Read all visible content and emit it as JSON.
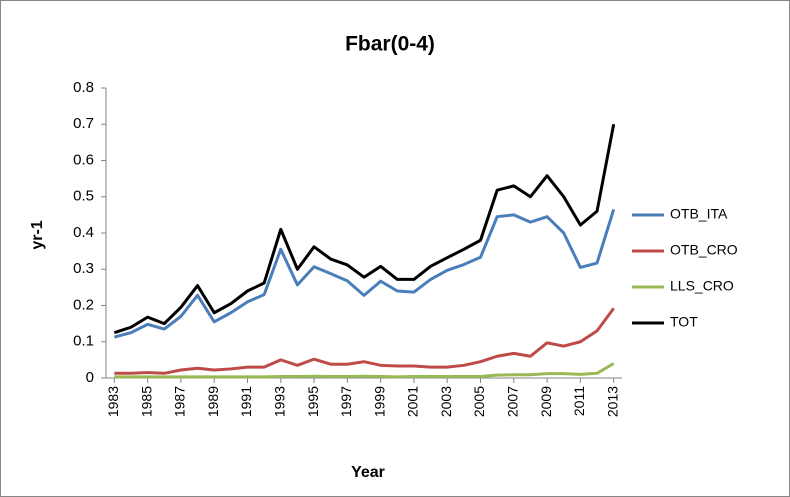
{
  "chart_data": {
    "type": "line",
    "title": "Fbar(0-4)",
    "x_label": "Year",
    "y_label": "yr-1",
    "x": [
      1983,
      1984,
      1985,
      1986,
      1987,
      1988,
      1989,
      1990,
      1991,
      1992,
      1993,
      1994,
      1995,
      1996,
      1997,
      1998,
      1999,
      2000,
      2001,
      2002,
      2003,
      2004,
      2005,
      2006,
      2007,
      2008,
      2009,
      2010,
      2011,
      2012,
      2013
    ],
    "xlim": [
      1982.5,
      2013.5
    ],
    "xticks": [
      1983,
      1985,
      1987,
      1989,
      1991,
      1993,
      1995,
      1997,
      1999,
      2001,
      2003,
      2005,
      2007,
      2009,
      2011,
      2013
    ],
    "ylim": [
      0,
      0.8
    ],
    "yticks": [
      0,
      0.1,
      0.2,
      0.3,
      0.4,
      0.5,
      0.6,
      0.7,
      0.8
    ],
    "grid": false,
    "legend": "right",
    "series": [
      {
        "name": "OTB_ITA",
        "color": "#4a7ebb",
        "values": [
          0.113,
          0.125,
          0.148,
          0.135,
          0.17,
          0.228,
          0.155,
          0.18,
          0.21,
          0.23,
          0.355,
          0.257,
          0.307,
          0.288,
          0.268,
          0.228,
          0.267,
          0.24,
          0.237,
          0.272,
          0.297,
          0.313,
          0.333,
          0.445,
          0.45,
          0.43,
          0.445,
          0.4,
          0.305,
          0.317,
          0.465
        ]
      },
      {
        "name": "OTB_CRO",
        "color": "#be4b48",
        "values": [
          0.013,
          0.013,
          0.015,
          0.013,
          0.022,
          0.027,
          0.022,
          0.025,
          0.03,
          0.03,
          0.05,
          0.035,
          0.052,
          0.038,
          0.038,
          0.045,
          0.035,
          0.033,
          0.033,
          0.03,
          0.03,
          0.035,
          0.045,
          0.06,
          0.068,
          0.06,
          0.097,
          0.088,
          0.1,
          0.13,
          0.192
        ]
      },
      {
        "name": "LLS_CRO",
        "color": "#98b954",
        "values": [
          0.003,
          0.003,
          0.003,
          0.003,
          0.003,
          0.003,
          0.003,
          0.003,
          0.003,
          0.003,
          0.004,
          0.004,
          0.005,
          0.004,
          0.004,
          0.005,
          0.004,
          0.003,
          0.004,
          0.004,
          0.004,
          0.004,
          0.004,
          0.008,
          0.009,
          0.009,
          0.012,
          0.012,
          0.01,
          0.013,
          0.04
        ]
      },
      {
        "name": "TOT",
        "color": "#000000",
        "values": [
          0.125,
          0.14,
          0.168,
          0.15,
          0.195,
          0.255,
          0.18,
          0.205,
          0.24,
          0.262,
          0.41,
          0.3,
          0.362,
          0.328,
          0.312,
          0.278,
          0.308,
          0.272,
          0.272,
          0.308,
          0.332,
          0.355,
          0.38,
          0.518,
          0.53,
          0.5,
          0.558,
          0.5,
          0.422,
          0.46,
          0.7
        ]
      }
    ]
  }
}
